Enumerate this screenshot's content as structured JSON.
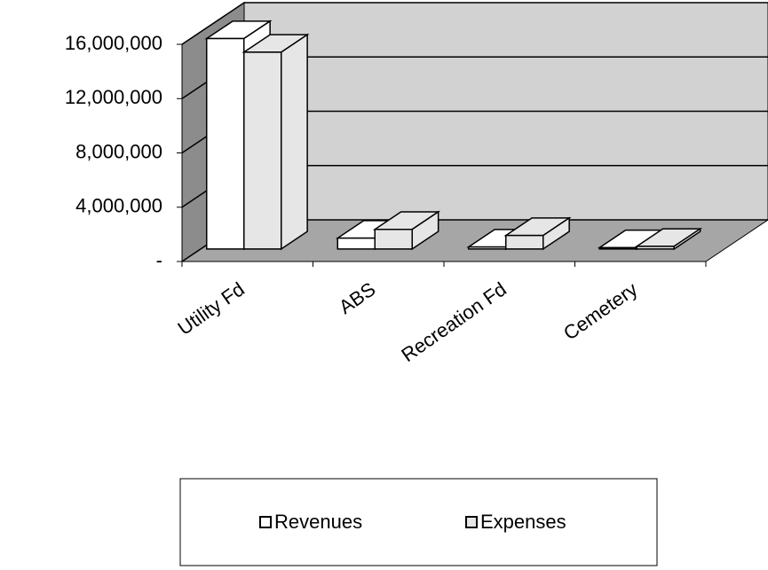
{
  "chart_data": {
    "type": "bar3d",
    "categories": [
      "Utility Fd",
      "ABS",
      "Recreation Fd",
      "Cemetery"
    ],
    "series": [
      {
        "name": "Revenues",
        "color": "#ffffff",
        "values": [
          15500000,
          800000,
          150000,
          100000
        ]
      },
      {
        "name": "Expenses",
        "color": "#e6e6e6",
        "values": [
          14500000,
          1450000,
          1000000,
          200000
        ]
      }
    ],
    "ylim": [
      0,
      16000000
    ],
    "yticks": [
      {
        "value": 0,
        "label": "-"
      },
      {
        "value": 4000000,
        "label": "4,000,000"
      },
      {
        "value": 8000000,
        "label": "8,000,000"
      },
      {
        "value": 12000000,
        "label": "12,000,000"
      },
      {
        "value": 16000000,
        "label": "16,000,000"
      }
    ],
    "grid": true,
    "legend": "bottom"
  }
}
